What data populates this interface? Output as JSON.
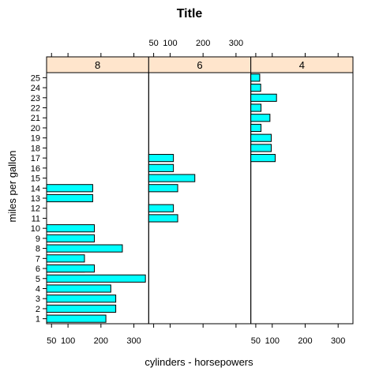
{
  "chart_data": {
    "type": "bar",
    "orientation": "horizontal",
    "title": "Title",
    "xlabel": "cylinders - horsepowers",
    "ylabel": "miles per gallon",
    "xlim": [
      35,
      345
    ],
    "x_ticks": [
      50,
      100,
      200,
      300
    ],
    "y_categories": [
      "1",
      "2",
      "3",
      "4",
      "5",
      "6",
      "7",
      "8",
      "9",
      "10",
      "11",
      "12",
      "13",
      "14",
      "15",
      "16",
      "17",
      "18",
      "19",
      "20",
      "21",
      "22",
      "23",
      "24",
      "25"
    ],
    "bar_color": "#00ffff",
    "strip_color": "#ffe5cc",
    "panels": [
      {
        "name": "8",
        "bars": [
          {
            "y": "1",
            "value": 215
          },
          {
            "y": "2",
            "value": 245
          },
          {
            "y": "3",
            "value": 245
          },
          {
            "y": "4",
            "value": 230
          },
          {
            "y": "5",
            "value": 335
          },
          {
            "y": "6",
            "value": 150
          },
          {
            "y": "6",
            "value": 180
          },
          {
            "y": "7",
            "value": 150
          },
          {
            "y": "8",
            "value": 265
          },
          {
            "y": "9",
            "value": 180
          },
          {
            "y": "10",
            "value": 180
          },
          {
            "y": "13",
            "value": 175
          },
          {
            "y": "14",
            "value": 175
          }
        ]
      },
      {
        "name": "6",
        "bars": [
          {
            "y": "11",
            "value": 123
          },
          {
            "y": "12",
            "value": 110
          },
          {
            "y": "14",
            "value": 123
          },
          {
            "y": "15",
            "value": 175
          },
          {
            "y": "16",
            "value": 110
          },
          {
            "y": "17",
            "value": 110
          }
        ]
      },
      {
        "name": "4",
        "bars": [
          {
            "y": "17",
            "value": 109
          },
          {
            "y": "18",
            "value": 97
          },
          {
            "y": "19",
            "value": 97
          },
          {
            "y": "20",
            "value": 66
          },
          {
            "y": "21",
            "value": 93
          },
          {
            "y": "22",
            "value": 66
          },
          {
            "y": "23",
            "value": 113
          },
          {
            "y": "24",
            "value": 65
          },
          {
            "y": "25",
            "value": 62
          }
        ]
      }
    ]
  }
}
